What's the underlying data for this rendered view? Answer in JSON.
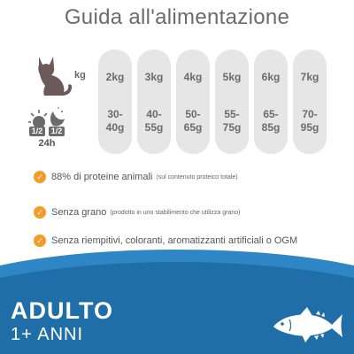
{
  "title": "Guida all'alimentazione",
  "weight_unit": "kg",
  "fraction_left": "1/2",
  "fraction_right": "1/2",
  "per_day": "24h",
  "columns": [
    {
      "weight": "2kg",
      "grams": "30-\n40g"
    },
    {
      "weight": "3kg",
      "grams": "40-\n55g"
    },
    {
      "weight": "4kg",
      "grams": "50-\n65g"
    },
    {
      "weight": "5kg",
      "grams": "55-\n75g"
    },
    {
      "weight": "6kg",
      "grams": "65-\n85g"
    },
    {
      "weight": "7kg",
      "grams": "70-\n95g"
    }
  ],
  "features": [
    {
      "text": "88% di proteine animali",
      "note": "(sul contenuto proteico totale)"
    },
    {
      "text": "Senza grano",
      "note": "(prodotto in uno stabilimento che utilizza grano)"
    },
    {
      "text": "Senza riempitivi, coloranti, aromatizzanti artificiali o OGM",
      "note": ""
    }
  ],
  "life_stage": "ADULTO",
  "age_range": "1+ ANNI",
  "icons": {
    "cat": "cat-icon",
    "day_night": "sun-moon-icon",
    "check": "check-icon",
    "fish": "tuna-fish-icon"
  },
  "colors": {
    "title": "#6b6b6b",
    "pill": "#e6e6e6",
    "check": "#f39c2c",
    "banner": "#1f6ea8",
    "banner_light": "#2f86c4",
    "cat": "#6b5a57"
  }
}
